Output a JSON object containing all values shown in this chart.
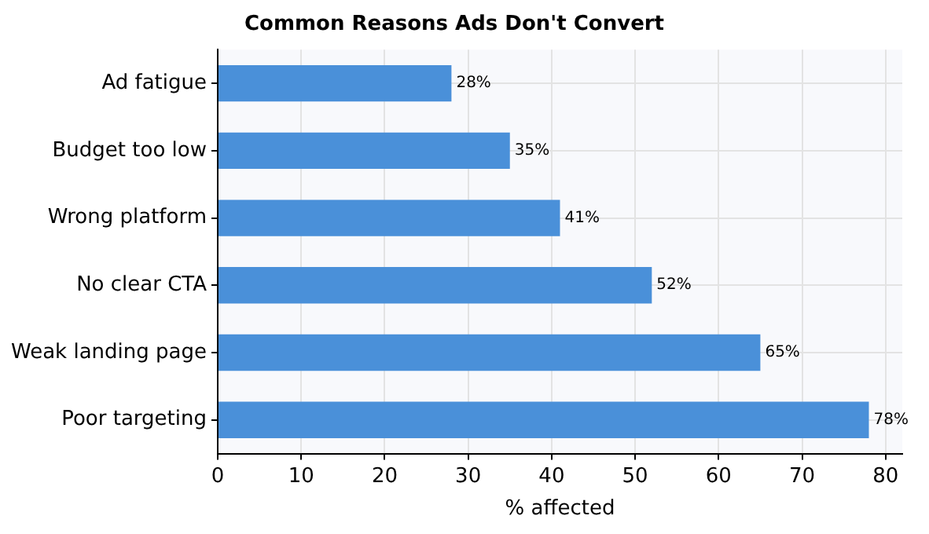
{
  "chart_data": {
    "type": "bar",
    "orientation": "horizontal",
    "title": "Common Reasons Ads Don't Convert",
    "xlabel": "% affected",
    "categories": [
      "Ad fatigue",
      "Budget too low",
      "Wrong platform",
      "No clear CTA",
      "Weak landing page",
      "Poor targeting"
    ],
    "values": [
      28,
      35,
      41,
      52,
      65,
      78
    ],
    "color": "#4a90d9",
    "value_labels": [
      "28%",
      "35%",
      "41%",
      "52%",
      "65%",
      "78%"
    ],
    "xlim": [
      0,
      82
    ],
    "xticks": [
      0,
      10,
      20,
      30,
      40,
      50,
      60,
      70,
      80
    ],
    "grid": true,
    "legend": false
  }
}
